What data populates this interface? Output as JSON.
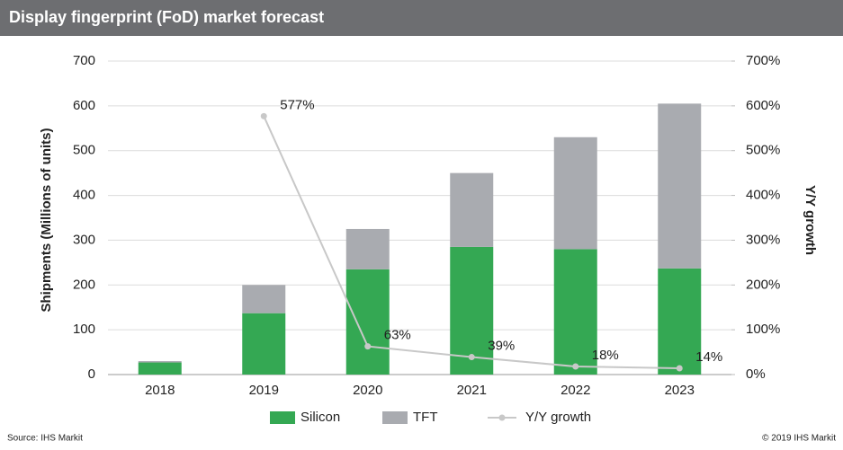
{
  "chart_data": {
    "type": "bar",
    "stacked": true,
    "title": "Display fingerprint (FoD) market forecast",
    "ylabel": "Shipments (Millions of units)",
    "y2label": "Y/Y growth",
    "source": "Source: IHS Markit",
    "copyright": "© 2019 IHS Markit",
    "categories": [
      "2018",
      "2019",
      "2020",
      "2021",
      "2022",
      "2023"
    ],
    "series": [
      {
        "name": "Silicon",
        "color": "#34a853",
        "values": [
          27,
          137,
          235,
          285,
          280,
          237
        ]
      },
      {
        "name": "TFT",
        "color": "#a9abb0",
        "values": [
          3,
          63,
          90,
          165,
          250,
          368
        ]
      },
      {
        "name": "Y/Y growth",
        "type": "line",
        "axis": "y2",
        "color": "#c8c8c8",
        "values": [
          null,
          577,
          63,
          39,
          18,
          14
        ],
        "value_labels": [
          null,
          "577%",
          "63%",
          "39%",
          "18%",
          "14%"
        ]
      }
    ],
    "ylim": [
      0,
      700
    ],
    "yticks": [
      0,
      100,
      200,
      300,
      400,
      500,
      600,
      700
    ],
    "y2lim": [
      0,
      700
    ],
    "y2ticks": [
      {
        "value": 0,
        "label": "0%"
      },
      {
        "value": 100,
        "label": "100%"
      },
      {
        "value": 200,
        "label": "200%"
      },
      {
        "value": 300,
        "label": "300%"
      },
      {
        "value": 400,
        "label": "400%"
      },
      {
        "value": 500,
        "label": "500%"
      },
      {
        "value": 600,
        "label": "600%"
      },
      {
        "value": 700,
        "label": "700%"
      }
    ],
    "grid": true,
    "legend": "bottom"
  }
}
